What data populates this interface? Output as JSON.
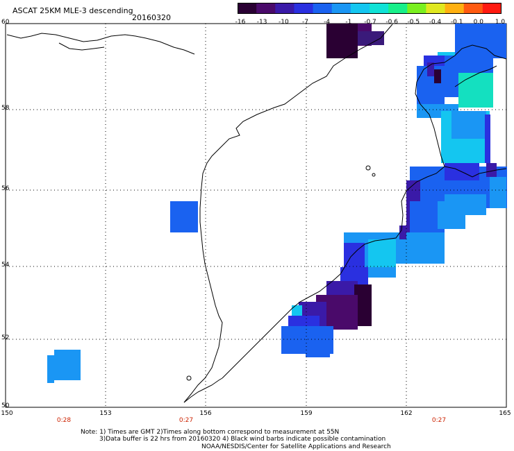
{
  "title": "ASCAT 25KM MLE-3 descending",
  "date": "20160320",
  "colorbar": {
    "ticks": [
      "-16",
      "-13",
      "-10",
      "-7",
      "-4",
      "-1",
      "-0.7",
      "-0.6",
      "-0.5",
      "-0.4",
      "-0.1",
      "0.0",
      "1.0"
    ],
    "colors": [
      "#2a0033",
      "#4a0a6a",
      "#3a1aa8",
      "#2a30e0",
      "#1a62f0",
      "#1a96f4",
      "#14c6f0",
      "#10e2d6",
      "#18f08a",
      "#7af020",
      "#e0e820",
      "#ffb010",
      "#ff5a10",
      "#ff1a10"
    ]
  },
  "axes": {
    "lat_labels": [
      "60",
      "58",
      "56",
      "54",
      "52",
      "50"
    ],
    "lon_labels": [
      "150",
      "153",
      "156",
      "159",
      "162",
      "165"
    ],
    "time_labels": [
      "0:28",
      "0:27",
      "0:27"
    ]
  },
  "notes": {
    "line1": "Note: 1) Times are GMT 2)Times along bottom correspond to measurement at 55N",
    "line2": "3)Data buffer is 22 hrs from 20160320 4) Black wind barbs indicate possible contamination",
    "line3": "NOAA/NESDIS/Center for Satellite Applications and Research"
  },
  "colors": {
    "dark_purple": "#2a0033",
    "blue": "#1a62f0",
    "light_blue": "#1a96f4",
    "cyan": "#14c6f0"
  }
}
